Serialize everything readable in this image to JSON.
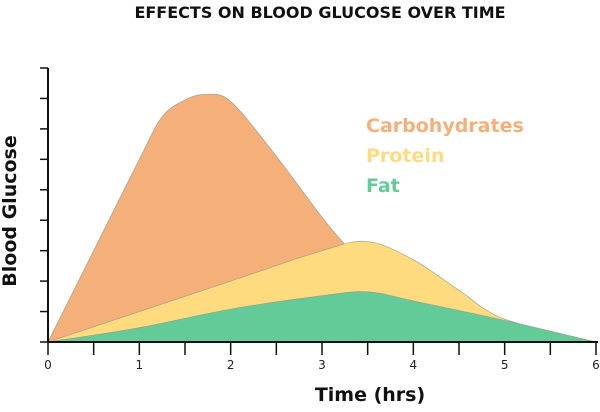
{
  "chart_data": {
    "type": "area",
    "title": "EFFECTS ON BLOOD GLUCOSE OVER TIME",
    "xlabel": "Time (hrs)",
    "ylabel": "Blood Glucose",
    "xlim": [
      0,
      6
    ],
    "ylim": [
      0,
      9
    ],
    "x_ticks": [
      "0",
      "1",
      "2",
      "3",
      "4",
      "5",
      "6"
    ],
    "y_ticks_labeled": false,
    "legend_position": "top-right",
    "series": [
      {
        "name": "Carbohydrates",
        "color": "#F5AF78",
        "points": [
          [
            0,
            0
          ],
          [
            0.5,
            3
          ],
          [
            1,
            6
          ],
          [
            1.25,
            7.4
          ],
          [
            1.5,
            7.95
          ],
          [
            1.72,
            8.13
          ],
          [
            2,
            7.9
          ],
          [
            2.5,
            6.1
          ],
          [
            3,
            4.1
          ],
          [
            3.25,
            3.2
          ],
          [
            3.5,
            2.4
          ],
          [
            4,
            1.0
          ],
          [
            4.5,
            0.3
          ],
          [
            5,
            0
          ]
        ]
      },
      {
        "name": "Protein",
        "color": "#FDDB7E",
        "points": [
          [
            0,
            0
          ],
          [
            1,
            1.0
          ],
          [
            2,
            2.0
          ],
          [
            3,
            3.0
          ],
          [
            3.5,
            3.3
          ],
          [
            4,
            2.7
          ],
          [
            4.5,
            1.7
          ],
          [
            5,
            0.75
          ],
          [
            6,
            0
          ]
        ]
      },
      {
        "name": "Fat",
        "color": "#62CB97",
        "points": [
          [
            0,
            0
          ],
          [
            1,
            0.47
          ],
          [
            2,
            1.08
          ],
          [
            3,
            1.52
          ],
          [
            3.5,
            1.65
          ],
          [
            4,
            1.35
          ],
          [
            5,
            0.71
          ],
          [
            6,
            0
          ]
        ]
      }
    ]
  }
}
